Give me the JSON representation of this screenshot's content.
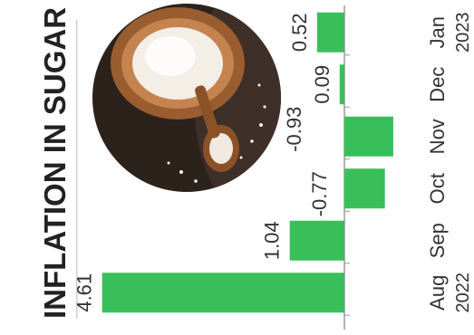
{
  "chart_data": {
    "type": "bar",
    "orientation": "horizontal",
    "title": "INFLATION IN SUGAR",
    "categories": [
      "Aug",
      "Sep",
      "Oct",
      "Nov",
      "Dec",
      "Jan"
    ],
    "year_labels": [
      "2022",
      "2023"
    ],
    "values": [
      4.61,
      1.04,
      -0.77,
      -0.93,
      0.09,
      0.52
    ],
    "value_labels": [
      "4.61",
      "1.04",
      "-0.77",
      "-0.93",
      "0.09",
      "0.52"
    ],
    "xlabel": "",
    "ylabel": "",
    "xlim": [
      -1.0,
      5.0
    ],
    "grid": false,
    "legend": "none",
    "colors": {
      "bar": "#39bf5a",
      "axis": "#9a9a9a",
      "text": "#333333",
      "title": "#222222",
      "bowl_dark": "#3a2a1e",
      "bowl_wood": "#a86a3a",
      "sugar": "#f4efe8"
    }
  },
  "image": {
    "icon": "sugar-bowl-photo-icon"
  }
}
